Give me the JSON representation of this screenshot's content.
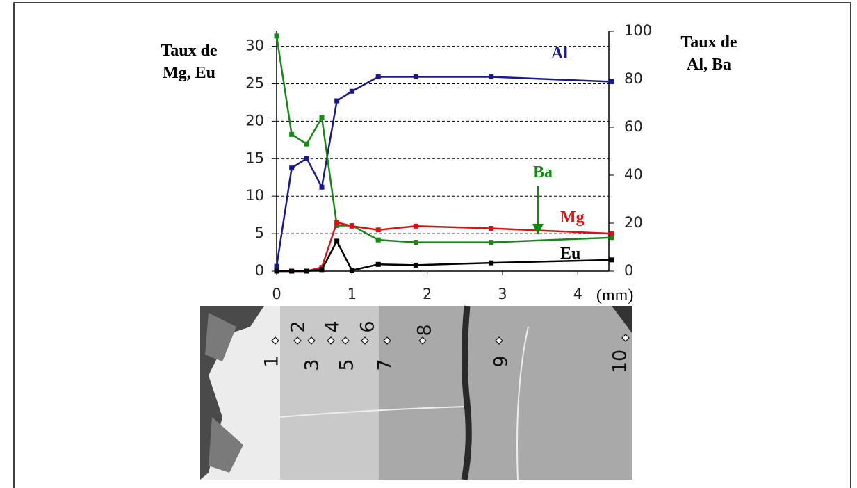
{
  "chart_data": {
    "type": "line",
    "y_label_lines": [
      "Taux de",
      "Mg, Eu"
    ],
    "y2_label_lines": [
      "Taux de",
      "Al, Ba"
    ],
    "x_label": "(mm)",
    "x": [
      0,
      0.2,
      0.4,
      0.6,
      0.8,
      1.0,
      1.35,
      1.85,
      2.85,
      4.45
    ],
    "xlim": [
      0,
      4.45
    ],
    "xticks": [
      0,
      1,
      2,
      3,
      4
    ],
    "ylim": [
      0,
      32
    ],
    "yticks": [
      0,
      5,
      10,
      15,
      20,
      25,
      30
    ],
    "y2lim": [
      0,
      100
    ],
    "y2ticks": [
      0,
      20,
      40,
      60,
      80,
      100
    ],
    "grid": true,
    "series": [
      {
        "name": "Al",
        "color": "#1a1a90",
        "axis": "y2",
        "values": [
          2,
          43,
          47,
          35,
          71,
          75,
          81,
          81,
          81,
          79
        ]
      },
      {
        "name": "Ba",
        "color": "#138a13",
        "axis": "y2",
        "values": [
          98,
          57,
          53,
          64,
          19,
          19,
          13,
          12,
          12,
          14
        ]
      },
      {
        "name": "Mg",
        "color": "#e01010",
        "values": [
          0,
          0,
          0,
          0.5,
          6.5,
          6,
          5.5,
          6,
          5.7,
          5
        ]
      },
      {
        "name": "Eu",
        "color": "#000000",
        "values": [
          0,
          0,
          0,
          0.2,
          4,
          0.1,
          0.9,
          0.8,
          1.1,
          1.5
        ]
      }
    ]
  },
  "figure_image": {
    "point_labels": [
      "1",
      "2",
      "3",
      "4",
      "5",
      "6",
      "7",
      "8",
      "9",
      "10"
    ]
  }
}
